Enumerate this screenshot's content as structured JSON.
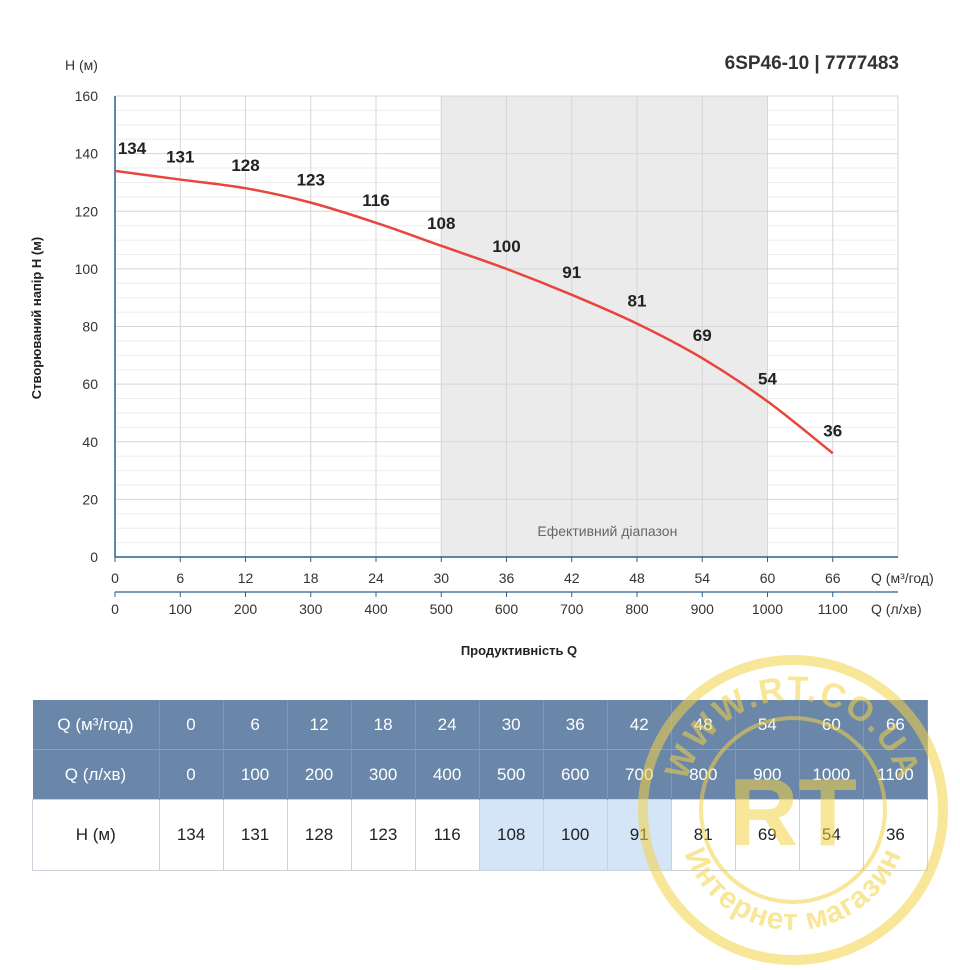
{
  "chart_data": {
    "type": "line",
    "title": "6SP46-10 | 7777483",
    "ylabel": "Створюваний напір H (м)",
    "y_unit": "H (м)",
    "xlabel": "Продуктивність Q",
    "x_unit": "Q (м³/год)",
    "x2_unit": "Q (л/хв)",
    "ylim": [
      0,
      160
    ],
    "yticks": [
      0,
      20,
      40,
      60,
      80,
      100,
      120,
      140,
      160
    ],
    "xlim": [
      0,
      72
    ],
    "xticks": [
      0,
      6,
      12,
      18,
      24,
      30,
      36,
      42,
      48,
      54,
      60,
      66
    ],
    "x2ticks": [
      0,
      100,
      200,
      300,
      400,
      500,
      600,
      700,
      800,
      900,
      1000,
      1100
    ],
    "x": [
      0,
      6,
      12,
      18,
      24,
      30,
      36,
      42,
      48,
      54,
      60,
      66
    ],
    "series": [
      {
        "values": [
          134,
          131,
          128,
          123,
          116,
          108,
          100,
          91,
          81,
          69,
          54,
          36
        ],
        "color": "#e8453c"
      }
    ],
    "efficient_range": {
      "label": "Ефективний діапазон",
      "from": 30,
      "to": 60
    },
    "grid": true
  },
  "table": {
    "rows": [
      {
        "label": "Q (м³/год)",
        "cells": [
          "0",
          "6",
          "12",
          "18",
          "24",
          "30",
          "36",
          "42",
          "48",
          "54",
          "60",
          "66"
        ]
      },
      {
        "label": "Q (л/хв)",
        "cells": [
          "0",
          "100",
          "200",
          "300",
          "400",
          "500",
          "600",
          "700",
          "800",
          "900",
          "1000",
          "1100"
        ]
      },
      {
        "label": "H (м)",
        "cells": [
          "134",
          "131",
          "128",
          "123",
          "116",
          "108",
          "100",
          "91",
          "81",
          "69",
          "54",
          "36"
        ]
      }
    ],
    "efficient_columns": [
      5,
      6,
      7
    ]
  },
  "watermark": {
    "text_top": "WWW.RT.CO.UA",
    "logo": "RT",
    "text_bottom": "Интернет магазин",
    "color": "#f3d247"
  }
}
